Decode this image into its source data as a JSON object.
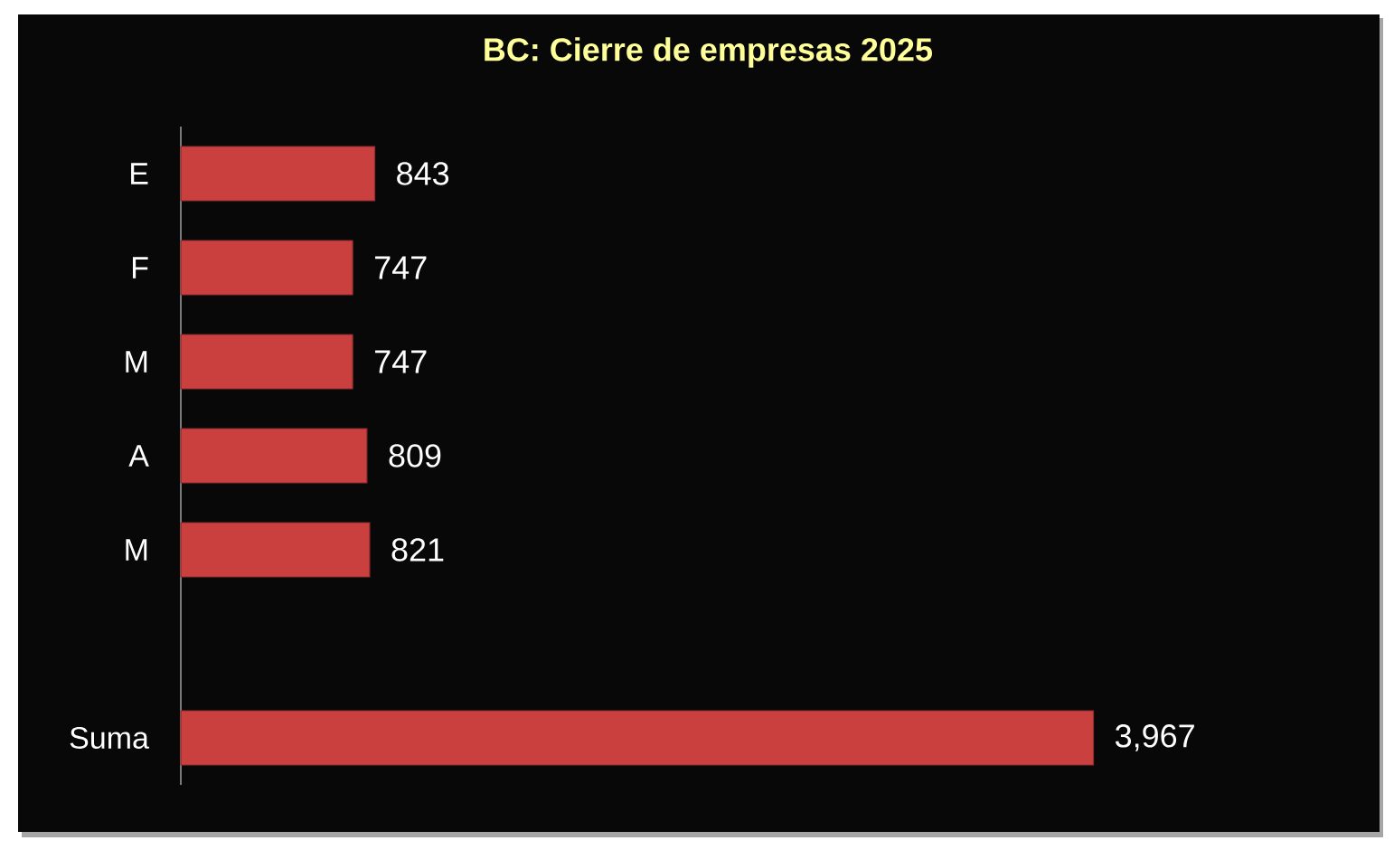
{
  "chart_data": {
    "type": "bar",
    "orientation": "horizontal",
    "title": "BC: Cierre de empresas 2025",
    "categories": [
      "E",
      "F",
      "M",
      "A",
      "M",
      null,
      "Suma"
    ],
    "values": [
      843,
      747,
      747,
      809,
      821,
      null,
      3967
    ],
    "value_labels": [
      "843",
      "747",
      "747",
      "809",
      "821",
      null,
      "3,967"
    ],
    "color": "#c9403f",
    "tick_labels": "y"
  }
}
